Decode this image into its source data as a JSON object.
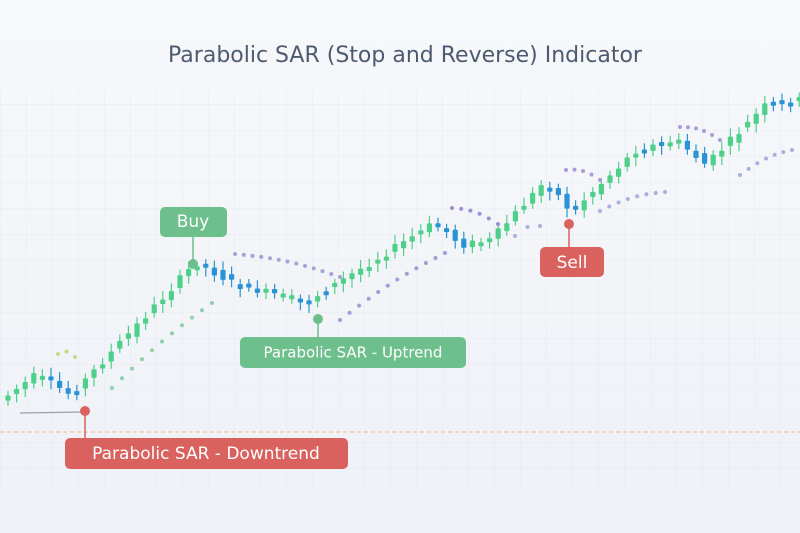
{
  "title": "Parabolic SAR (Stop and Reverse) Indicator",
  "labels": {
    "buy": "Buy",
    "sell": "Sell",
    "uptrend": "Parabolic SAR - Uptrend",
    "downtrend": "Parabolic SAR - Downtrend"
  }
}
